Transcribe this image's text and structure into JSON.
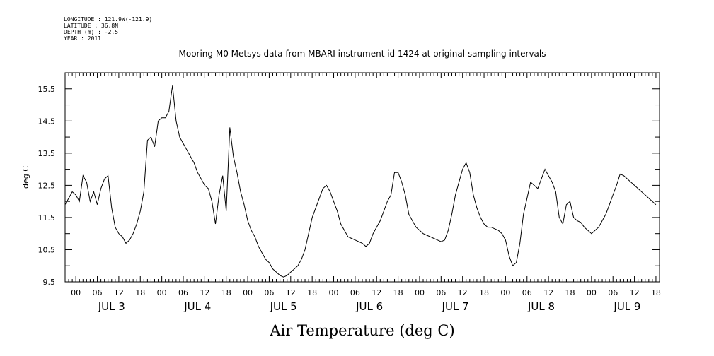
{
  "header": {
    "longitude": "LONGITUDE : 121.9W(-121.9)",
    "latitude": "LATITUDE : 36.8N",
    "depth": "DEPTH (m) : -2.5",
    "year": "YEAR : 2011"
  },
  "chart_data": {
    "type": "line",
    "title": "Mooring M0 Metsys data from MBARI instrument id 1424 at original sampling intervals",
    "xlabel": "Air Temperature (deg C)",
    "ylabel": "deg C",
    "ylim": [
      9.5,
      16.0
    ],
    "xlim_hours": [
      0,
      166
    ],
    "x_start": "2011-07-02 21:00",
    "yticks": [
      "9.5",
      "10.5",
      "11.5",
      "12.5",
      "13.5",
      "14.5",
      "15.5"
    ],
    "hour_tick_labels": [
      "00",
      "06",
      "12",
      "18",
      "00",
      "06",
      "12",
      "18",
      "00",
      "06",
      "12",
      "18",
      "00",
      "06",
      "12",
      "18",
      "00",
      "06",
      "12",
      "18",
      "00",
      "06",
      "12",
      "18",
      "00",
      "06",
      "12",
      "18"
    ],
    "day_labels": [
      "JUL 3",
      "JUL 4",
      "JUL 5",
      "JUL 6",
      "JUL 7",
      "JUL 8",
      "JUL 9"
    ],
    "grid": false,
    "legend": "none",
    "line_color": "#000000",
    "series": [
      {
        "x": [
          0,
          1,
          2,
          3,
          4,
          5,
          6,
          7,
          8,
          9,
          10,
          11,
          12,
          13,
          14,
          15,
          16,
          17,
          18,
          19,
          20,
          21,
          22,
          23,
          24,
          25,
          26,
          27,
          28,
          29,
          30,
          31,
          32,
          33,
          34,
          35,
          36,
          37,
          38,
          39,
          40,
          41,
          42,
          43,
          44,
          45,
          46,
          47,
          48,
          49,
          50,
          51,
          52,
          53,
          54,
          55,
          56,
          57,
          58,
          59,
          60,
          61,
          62,
          63,
          64,
          65,
          66,
          67,
          68,
          69,
          70,
          71,
          72,
          73,
          74,
          75,
          76,
          77,
          78,
          79,
          80,
          81,
          82,
          83,
          84,
          85,
          86,
          87,
          88,
          89,
          90,
          91,
          92,
          93,
          94,
          95,
          96,
          97,
          98,
          99,
          100,
          101,
          102,
          103,
          104,
          105,
          106,
          107,
          108,
          109,
          110,
          111,
          112,
          113,
          114,
          115,
          116,
          117,
          118,
          119,
          120,
          121,
          122,
          123,
          124,
          125,
          126,
          127,
          128,
          129,
          130,
          131,
          132,
          133,
          134,
          135,
          136,
          137,
          138,
          139,
          140,
          141,
          142,
          143,
          144,
          145,
          146,
          147,
          148,
          149,
          150,
          151,
          152,
          153,
          154,
          155,
          156,
          157,
          158,
          159,
          160,
          161,
          162,
          163,
          164,
          165
        ],
        "values": [
          11.9,
          12.1,
          12.3,
          12.2,
          12.0,
          12.8,
          12.6,
          12.0,
          12.3,
          11.9,
          12.4,
          12.7,
          12.8,
          11.8,
          11.2,
          11.0,
          10.9,
          10.7,
          10.8,
          11.0,
          11.3,
          11.7,
          12.3,
          13.9,
          14.0,
          13.7,
          14.5,
          14.6,
          14.6,
          14.8,
          15.6,
          14.5,
          14.0,
          13.8,
          13.6,
          13.4,
          13.2,
          12.9,
          12.7,
          12.5,
          12.4,
          12.0,
          11.3,
          12.2,
          12.8,
          11.7,
          14.3,
          13.4,
          12.9,
          12.3,
          11.9,
          11.4,
          11.1,
          10.9,
          10.6,
          10.4,
          10.2,
          10.1,
          9.9,
          9.8,
          9.7,
          9.65,
          9.7,
          9.8,
          9.9,
          10.0,
          10.2,
          10.5,
          11.0,
          11.5,
          11.8,
          12.1,
          12.4,
          12.5,
          12.3,
          12.0,
          11.7,
          11.3,
          11.1,
          10.9,
          10.85,
          10.8,
          10.75,
          10.7,
          10.6,
          10.7,
          11.0,
          11.2,
          11.4,
          11.7,
          12.0,
          12.2,
          12.9,
          12.9,
          12.6,
          12.2,
          11.6,
          11.4,
          11.2,
          11.1,
          11.0,
          10.95,
          10.9,
          10.85,
          10.8,
          10.75,
          10.8,
          11.1,
          11.6,
          12.2,
          12.6,
          13.0,
          13.2,
          12.9,
          12.2,
          11.8,
          11.5,
          11.3,
          11.2,
          11.2,
          11.15,
          11.1,
          11.0,
          10.8,
          10.3,
          10.0,
          10.1,
          10.7,
          11.6,
          12.1,
          12.6,
          12.5,
          12.4,
          12.7,
          13.0,
          12.8,
          12.6,
          12.3,
          11.5,
          11.3,
          11.9,
          12.0,
          11.5,
          11.4,
          11.35,
          11.2,
          11.1,
          11.0,
          11.1,
          11.2,
          11.4,
          11.6,
          11.9,
          12.2,
          12.5,
          12.85,
          12.8,
          12.7,
          12.6,
          12.5,
          12.4,
          12.3,
          12.2,
          12.1,
          12.0,
          11.9
        ]
      }
    ]
  }
}
